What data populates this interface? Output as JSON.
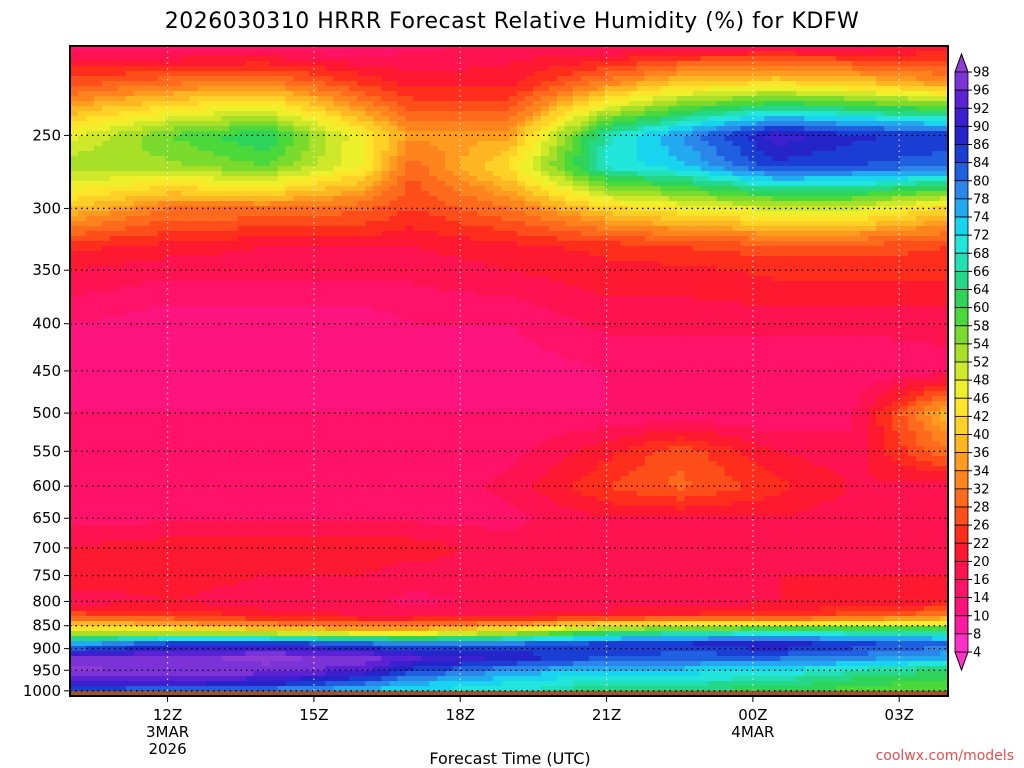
{
  "chart_data": {
    "type": "heatmap",
    "title": "2026030310 HRRR Forecast Relative Humidity (%) for KDFW",
    "xlabel": "Forecast Time (UTC)",
    "ylabel": "",
    "x_ticks": [
      {
        "hour": 12,
        "label": "12Z",
        "sub1": "3MAR",
        "sub2": "2026"
      },
      {
        "hour": 15,
        "label": "15Z",
        "sub1": "",
        "sub2": ""
      },
      {
        "hour": 18,
        "label": "18Z",
        "sub1": "",
        "sub2": ""
      },
      {
        "hour": 21,
        "label": "21Z",
        "sub1": "",
        "sub2": ""
      },
      {
        "hour": 24,
        "label": "00Z",
        "sub1": "4MAR",
        "sub2": ""
      },
      {
        "hour": 27,
        "label": "03Z",
        "sub1": "",
        "sub2": ""
      }
    ],
    "xlim": [
      10,
      28
    ],
    "y_ticks": [
      {
        "p": 250,
        "label": "250"
      },
      {
        "p": 300,
        "label": "300"
      },
      {
        "p": 350,
        "label": "350"
      },
      {
        "p": 400,
        "label": "400"
      },
      {
        "p": 450,
        "label": "450"
      },
      {
        "p": 500,
        "label": "500"
      },
      {
        "p": 550,
        "label": "550"
      },
      {
        "p": 600,
        "label": "600"
      },
      {
        "p": 650,
        "label": "650"
      },
      {
        "p": 700,
        "label": "700"
      },
      {
        "p": 750,
        "label": "750"
      },
      {
        "p": 800,
        "label": "800"
      },
      {
        "p": 850,
        "label": "850"
      },
      {
        "p": 900,
        "label": "900"
      },
      {
        "p": 950,
        "label": "950"
      },
      {
        "p": 1000,
        "label": "1000"
      }
    ],
    "ylim": [
      200,
      1013
    ],
    "y_scale": "log-pressure",
    "grid": true,
    "ground_pressure": 1000,
    "colorbar_labels": [
      "98",
      "96",
      "92",
      "90",
      "86",
      "84",
      "80",
      "78",
      "74",
      "72",
      "68",
      "66",
      "64",
      "60",
      "58",
      "54",
      "52",
      "48",
      "46",
      "42",
      "40",
      "36",
      "34",
      "32",
      "28",
      "26",
      "22",
      "20",
      "16",
      "14",
      "10",
      "8",
      "4"
    ],
    "colorbar_colors": [
      "#8f3bd6",
      "#7b33d8",
      "#5a22d4",
      "#3c1fcf",
      "#2424c8",
      "#1a3ed3",
      "#1f5fe0",
      "#2b86ea",
      "#22a9ef",
      "#19d4ee",
      "#22e6dc",
      "#22e0b4",
      "#25d887",
      "#2ed45a",
      "#4bd83a",
      "#7ada2d",
      "#a8e028",
      "#cfe82a",
      "#eef02c",
      "#ffe52a",
      "#ffd026",
      "#ffb623",
      "#ff9c20",
      "#ff841e",
      "#ff6a1c",
      "#ff4e1a",
      "#ff2e1c",
      "#ff1930",
      "#ff1250",
      "#ff1268",
      "#ff147e",
      "#ff1aa0",
      "#ff30c8"
    ],
    "rh_profiles": [
      {
        "hour": 10.0,
        "p": [
          200,
          220,
          250,
          270,
          300,
          330,
          350,
          400,
          450,
          500,
          550,
          600,
          650,
          700,
          750,
          800,
          830,
          860,
          890,
          920,
          950,
          980,
          1000
        ],
        "rh": [
          14,
          26,
          46,
          52,
          38,
          22,
          18,
          12,
          10,
          12,
          12,
          12,
          14,
          18,
          20,
          16,
          26,
          46,
          74,
          94,
          98,
          90,
          80
        ]
      },
      {
        "hour": 12.0,
        "p": [
          200,
          220,
          250,
          270,
          300,
          330,
          350,
          400,
          450,
          500,
          550,
          600,
          650,
          700,
          750,
          800,
          830,
          860,
          890,
          920,
          950,
          980,
          1000
        ],
        "rh": [
          12,
          30,
          56,
          52,
          30,
          20,
          16,
          10,
          10,
          12,
          12,
          12,
          14,
          20,
          20,
          18,
          24,
          44,
          84,
          96,
          96,
          90,
          78
        ]
      },
      {
        "hour": 14.0,
        "p": [
          200,
          220,
          250,
          270,
          300,
          330,
          350,
          400,
          450,
          500,
          550,
          600,
          650,
          700,
          750,
          800,
          830,
          860,
          890,
          920,
          950,
          980,
          1000
        ],
        "rh": [
          12,
          32,
          62,
          56,
          30,
          18,
          16,
          10,
          10,
          12,
          12,
          12,
          14,
          20,
          18,
          16,
          20,
          40,
          86,
          98,
          96,
          88,
          76
        ]
      },
      {
        "hour": 16.0,
        "p": [
          200,
          220,
          250,
          270,
          300,
          330,
          350,
          400,
          450,
          500,
          550,
          600,
          650,
          700,
          750,
          800,
          830,
          860,
          890,
          920,
          950,
          980,
          1000
        ],
        "rh": [
          12,
          24,
          44,
          44,
          28,
          18,
          16,
          10,
          10,
          12,
          12,
          12,
          14,
          20,
          18,
          16,
          18,
          36,
          82,
          96,
          92,
          80,
          72
        ]
      },
      {
        "hour": 17.0,
        "p": [
          200,
          220,
          250,
          270,
          300,
          330,
          350,
          400,
          450,
          500,
          550,
          600,
          650,
          700,
          750,
          800,
          830,
          860,
          890,
          920,
          950,
          980,
          1000
        ],
        "rh": [
          14,
          20,
          34,
          28,
          24,
          18,
          16,
          12,
          10,
          12,
          12,
          12,
          14,
          20,
          16,
          14,
          18,
          36,
          78,
          92,
          84,
          74,
          70
        ]
      },
      {
        "hour": 19.0,
        "p": [
          200,
          220,
          250,
          270,
          300,
          330,
          350,
          400,
          450,
          500,
          550,
          600,
          650,
          700,
          750,
          800,
          830,
          860,
          890,
          920,
          950,
          980,
          1000
        ],
        "rh": [
          16,
          20,
          34,
          42,
          30,
          20,
          18,
          12,
          10,
          12,
          14,
          16,
          14,
          16,
          18,
          16,
          18,
          44,
          80,
          88,
          76,
          70,
          68
        ]
      },
      {
        "hour": 21.0,
        "p": [
          200,
          220,
          250,
          270,
          300,
          330,
          350,
          400,
          450,
          500,
          550,
          600,
          650,
          700,
          750,
          800,
          830,
          860,
          890,
          920,
          950,
          980,
          1000
        ],
        "rh": [
          14,
          32,
          66,
          68,
          40,
          22,
          20,
          16,
          12,
          12,
          20,
          24,
          18,
          16,
          18,
          16,
          20,
          56,
          84,
          82,
          72,
          66,
          62
        ]
      },
      {
        "hour": 22.5,
        "p": [
          200,
          220,
          250,
          270,
          300,
          330,
          350,
          400,
          450,
          500,
          550,
          600,
          650,
          700,
          750,
          800,
          830,
          860,
          890,
          920,
          950,
          980,
          1000
        ],
        "rh": [
          16,
          40,
          76,
          72,
          44,
          24,
          20,
          16,
          12,
          12,
          26,
          28,
          18,
          16,
          18,
          16,
          22,
          60,
          86,
          80,
          72,
          66,
          62
        ]
      },
      {
        "hour": 24.5,
        "p": [
          200,
          220,
          250,
          270,
          300,
          330,
          350,
          400,
          450,
          500,
          550,
          600,
          650,
          700,
          750,
          800,
          830,
          860,
          890,
          920,
          950,
          980,
          1000
        ],
        "rh": [
          16,
          42,
          90,
          84,
          48,
          26,
          22,
          16,
          12,
          12,
          18,
          22,
          18,
          16,
          18,
          18,
          22,
          62,
          88,
          80,
          70,
          64,
          60
        ]
      },
      {
        "hour": 26.0,
        "p": [
          200,
          220,
          250,
          270,
          300,
          330,
          350,
          400,
          450,
          500,
          550,
          600,
          650,
          700,
          750,
          800,
          830,
          860,
          890,
          920,
          950,
          980,
          1000
        ],
        "rh": [
          16,
          40,
          86,
          82,
          48,
          26,
          22,
          16,
          12,
          14,
          16,
          18,
          16,
          16,
          18,
          18,
          26,
          62,
          84,
          78,
          66,
          60,
          58
        ]
      },
      {
        "hour": 28.0,
        "p": [
          200,
          220,
          250,
          270,
          300,
          330,
          350,
          400,
          450,
          500,
          550,
          600,
          650,
          700,
          750,
          800,
          830,
          860,
          890,
          920,
          950,
          980,
          1000
        ],
        "rh": [
          18,
          34,
          84,
          80,
          40,
          24,
          22,
          16,
          14,
          38,
          30,
          16,
          16,
          16,
          18,
          20,
          30,
          62,
          80,
          74,
          62,
          58,
          56
        ]
      }
    ]
  },
  "footer": {
    "credit": "coolwx.com/models"
  }
}
